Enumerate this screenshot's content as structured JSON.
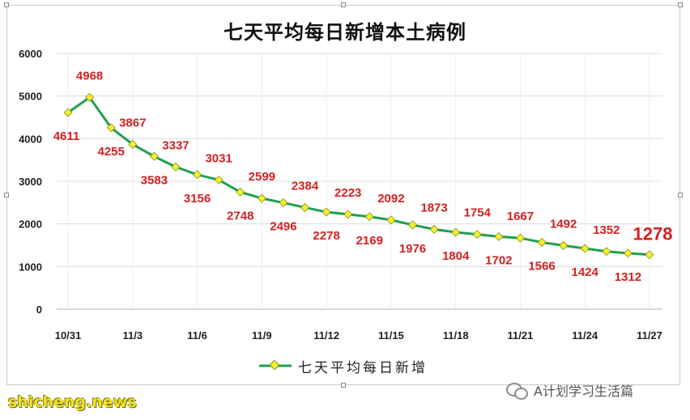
{
  "header": {
    "title": "七天平均每日新增本土病例"
  },
  "legend": {
    "label": "七天平均每日新增",
    "color": "#20a050",
    "marker_color": "#f2f22a"
  },
  "watermark": {
    "left_text": "shicheng.news",
    "right_text": "A计划学习生活篇"
  },
  "chart_data": {
    "type": "line",
    "title": "七天平均每日新增本土病例",
    "xlabel": "",
    "ylabel": "",
    "x": [
      "10/31",
      "11/1",
      "11/2",
      "11/3",
      "11/4",
      "11/5",
      "11/6",
      "11/7",
      "11/8",
      "11/9",
      "11/10",
      "11/11",
      "11/12",
      "11/13",
      "11/14",
      "11/15",
      "11/16",
      "11/17",
      "11/18",
      "11/19",
      "11/20",
      "11/21",
      "11/22",
      "11/23",
      "11/24",
      "11/25",
      "11/26",
      "11/27"
    ],
    "x_tick_labels": [
      "10/31",
      "11/3",
      "11/6",
      "11/9",
      "11/12",
      "11/15",
      "11/18",
      "11/21",
      "11/24",
      "11/27"
    ],
    "ylim": [
      0,
      6000
    ],
    "y_ticks": [
      "0",
      "1000",
      "2000",
      "3000",
      "4000",
      "5000",
      "6000"
    ],
    "grid": true,
    "legend_position": "bottom-center",
    "series": [
      {
        "name": "七天平均每日新增",
        "values": [
          4611,
          4968,
          4255,
          3867,
          3583,
          3337,
          3156,
          3031,
          2748,
          2599,
          2496,
          2384,
          2278,
          2223,
          2169,
          2092,
          1976,
          1873,
          1804,
          1754,
          1702,
          1667,
          1566,
          1492,
          1424,
          1352,
          1312,
          1278
        ],
        "labels": [
          "4611",
          "4968",
          "4255",
          "3867",
          "3583",
          "3337",
          "3156",
          "3031",
          "2748",
          "2599",
          "2496",
          "2384",
          "2278",
          "2223",
          "2169",
          "2092",
          "1976",
          "1873",
          "1804",
          "1754",
          "1702",
          "1667",
          "1566",
          "1492",
          "1424",
          "1352",
          "1312",
          "1278"
        ]
      }
    ],
    "colors": {
      "line": "#20a050",
      "marker": "#f2f22a",
      "label": "#d42020",
      "grid": "#dcdcdc"
    }
  }
}
